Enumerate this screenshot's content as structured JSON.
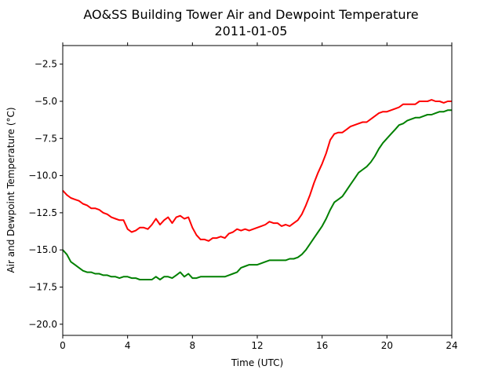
{
  "chart_data": {
    "type": "line",
    "title": "AO&SS Building Tower Air and Dewpoint Temperature",
    "subtitle": "2011-01-05",
    "xlabel": "Time (UTC)",
    "ylabel": "Air and Dewpoint Temperature (°C)",
    "xlim": [
      0,
      24
    ],
    "ylim": [
      -20.75,
      -1.25
    ],
    "x_ticks": [
      0,
      4,
      8,
      12,
      16,
      20,
      24
    ],
    "x_tick_labels": [
      "0",
      "4",
      "8",
      "12",
      "16",
      "20",
      "24"
    ],
    "y_ticks": [
      -20.0,
      -17.5,
      -15.0,
      -12.5,
      -10.0,
      -7.5,
      -5.0,
      -2.5
    ],
    "y_tick_labels": [
      "−20.0",
      "−17.5",
      "−15.0",
      "−12.5",
      "−10.0",
      "−7.5",
      "−5.0",
      "−2.5"
    ],
    "grid": false,
    "legend": "none",
    "series": [
      {
        "color": "#ff0000",
        "x": [
          0,
          0.25,
          0.5,
          0.75,
          1,
          1.25,
          1.5,
          1.75,
          2,
          2.25,
          2.5,
          2.75,
          3,
          3.25,
          3.5,
          3.75,
          4,
          4.25,
          4.5,
          4.75,
          5,
          5.25,
          5.5,
          5.75,
          6,
          6.25,
          6.5,
          6.75,
          7,
          7.25,
          7.5,
          7.75,
          8,
          8.25,
          8.5,
          8.75,
          9,
          9.25,
          9.5,
          9.75,
          10,
          10.25,
          10.5,
          10.75,
          11,
          11.25,
          11.5,
          11.75,
          12,
          12.25,
          12.5,
          12.75,
          13,
          13.25,
          13.5,
          13.75,
          14,
          14.25,
          14.5,
          14.75,
          15,
          15.25,
          15.5,
          15.75,
          16,
          16.25,
          16.5,
          16.75,
          17,
          17.25,
          17.5,
          17.75,
          18,
          18.25,
          18.5,
          18.75,
          19,
          19.25,
          19.5,
          19.75,
          20,
          20.25,
          20.5,
          20.75,
          21,
          21.25,
          21.5,
          21.75,
          22,
          22.25,
          22.5,
          22.75,
          23,
          23.25,
          23.5,
          23.75,
          24
        ],
        "y": [
          -11.0,
          -11.3,
          -11.5,
          -11.6,
          -11.7,
          -11.9,
          -12.0,
          -12.2,
          -12.2,
          -12.3,
          -12.5,
          -12.6,
          -12.8,
          -12.9,
          -13.0,
          -13.0,
          -13.6,
          -13.8,
          -13.7,
          -13.5,
          -13.5,
          -13.6,
          -13.3,
          -12.9,
          -13.3,
          -13.0,
          -12.8,
          -13.2,
          -12.8,
          -12.7,
          -12.9,
          -12.8,
          -13.5,
          -14.0,
          -14.3,
          -14.3,
          -14.4,
          -14.2,
          -14.2,
          -14.1,
          -14.2,
          -13.9,
          -13.8,
          -13.6,
          -13.7,
          -13.6,
          -13.7,
          -13.6,
          -13.5,
          -13.4,
          -13.3,
          -13.1,
          -13.2,
          -13.2,
          -13.4,
          -13.3,
          -13.4,
          -13.2,
          -13.0,
          -12.6,
          -12.0,
          -11.3,
          -10.5,
          -9.8,
          -9.2,
          -8.5,
          -7.6,
          -7.2,
          -7.1,
          -7.1,
          -6.9,
          -6.7,
          -6.6,
          -6.5,
          -6.4,
          -6.4,
          -6.2,
          -6.0,
          -5.8,
          -5.7,
          -5.7,
          -5.6,
          -5.5,
          -5.4,
          -5.2,
          -5.2,
          -5.2,
          -5.2,
          -5.0,
          -5.0,
          -5.0,
          -4.9,
          -5.0,
          -5.0,
          -5.1,
          -5.0,
          -5.0
        ]
      },
      {
        "color": "#008000",
        "x": [
          0,
          0.25,
          0.5,
          0.75,
          1,
          1.25,
          1.5,
          1.75,
          2,
          2.25,
          2.5,
          2.75,
          3,
          3.25,
          3.5,
          3.75,
          4,
          4.25,
          4.5,
          4.75,
          5,
          5.25,
          5.5,
          5.75,
          6,
          6.25,
          6.5,
          6.75,
          7,
          7.25,
          7.5,
          7.75,
          8,
          8.25,
          8.5,
          8.75,
          9,
          9.25,
          9.5,
          9.75,
          10,
          10.25,
          10.5,
          10.75,
          11,
          11.25,
          11.5,
          11.75,
          12,
          12.25,
          12.5,
          12.75,
          13,
          13.25,
          13.5,
          13.75,
          14,
          14.25,
          14.5,
          14.75,
          15,
          15.25,
          15.5,
          15.75,
          16,
          16.25,
          16.5,
          16.75,
          17,
          17.25,
          17.5,
          17.75,
          18,
          18.25,
          18.5,
          18.75,
          19,
          19.25,
          19.5,
          19.75,
          20,
          20.25,
          20.5,
          20.75,
          21,
          21.25,
          21.5,
          21.75,
          22,
          22.25,
          22.5,
          22.75,
          23,
          23.25,
          23.5,
          23.75,
          24
        ],
        "y": [
          -15.0,
          -15.3,
          -15.8,
          -16.0,
          -16.2,
          -16.4,
          -16.5,
          -16.5,
          -16.6,
          -16.6,
          -16.7,
          -16.7,
          -16.8,
          -16.8,
          -16.9,
          -16.8,
          -16.8,
          -16.9,
          -16.9,
          -17.0,
          -17.0,
          -17.0,
          -17.0,
          -16.8,
          -17.0,
          -16.8,
          -16.8,
          -16.9,
          -16.7,
          -16.5,
          -16.8,
          -16.6,
          -16.9,
          -16.9,
          -16.8,
          -16.8,
          -16.8,
          -16.8,
          -16.8,
          -16.8,
          -16.8,
          -16.7,
          -16.6,
          -16.5,
          -16.2,
          -16.1,
          -16.0,
          -16.0,
          -16.0,
          -15.9,
          -15.8,
          -15.7,
          -15.7,
          -15.7,
          -15.7,
          -15.7,
          -15.6,
          -15.6,
          -15.5,
          -15.3,
          -15.0,
          -14.6,
          -14.2,
          -13.8,
          -13.4,
          -12.9,
          -12.3,
          -11.8,
          -11.6,
          -11.4,
          -11.0,
          -10.6,
          -10.2,
          -9.8,
          -9.6,
          -9.4,
          -9.1,
          -8.7,
          -8.2,
          -7.8,
          -7.5,
          -7.2,
          -6.9,
          -6.6,
          -6.5,
          -6.3,
          -6.2,
          -6.1,
          -6.1,
          -6.0,
          -5.9,
          -5.9,
          -5.8,
          -5.7,
          -5.7,
          -5.6,
          -5.6
        ]
      }
    ]
  }
}
